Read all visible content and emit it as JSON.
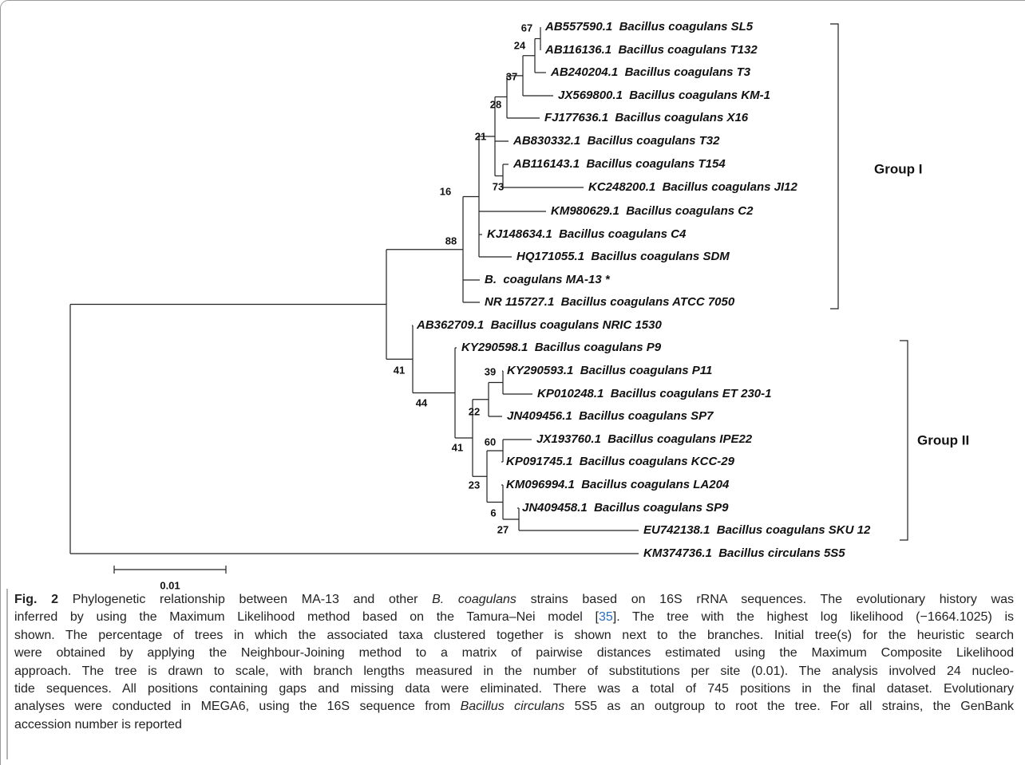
{
  "tree": {
    "leaves": [
      "AB557590.1  Bacillus coagulans SL5",
      "AB116136.1  Bacillus coagulans T132",
      "AB240204.1  Bacillus coagulans T3",
      "JX569800.1  Bacillus coagulans KM-1",
      "FJ177636.1  Bacillus coagulans X16",
      "AB830332.1  Bacillus coagulans T32",
      "AB116143.1  Bacillus coagulans T154",
      "KC248200.1  Bacillus coagulans JI12",
      "KM980629.1  Bacillus coagulans C2",
      "KJ148634.1  Bacillus coagulans C4",
      "HQ171055.1  Bacillus coagulans SDM",
      "B.  coagulans MA-13 *",
      "NR 115727.1  Bacillus coagulans ATCC 7050",
      "AB362709.1  Bacillus coagulans NRIC 1530",
      "KY290598.1  Bacillus coagulans P9",
      "KY290593.1  Bacillus coagulans P11",
      "KP010248.1  Bacillus coagulans ET 230-1",
      "JN409456.1  Bacillus coagulans SP7",
      "JX193760.1  Bacillus coagulans IPE22",
      "KP091745.1  Bacillus coagulans KCC-29",
      "KM096994.1  Bacillus coagulans LA204",
      "JN409458.1  Bacillus coagulans SP9",
      "EU742138.1  Bacillus coagulans SKU 12",
      "KM374736.1  Bacillus circulans 5S5"
    ],
    "support": [
      67,
      24,
      37,
      28,
      21,
      73,
      16,
      88,
      41,
      44,
      39,
      22,
      41,
      60,
      23,
      6,
      27
    ],
    "groups": [
      "Group I",
      "Group II"
    ],
    "scale": "0.01"
  },
  "caption": {
    "lines": [
      [
        "Fig. 2",
        " Phylogenetic relationship between MA-13 and other ",
        "B. coagulans",
        " strains based on 16S rRNA sequences. The evolutionary history was"
      ],
      [
        "inferred by using the Maximum Likelihood method based on the Tamura–Nei model [",
        "35",
        "]. The tree with the highest log likelihood (−1664.1025) is"
      ],
      [
        "shown. The percentage of trees in which the associated taxa clustered together is shown next to the branches. Initial tree(s) for the heuristic search"
      ],
      [
        "were obtained by applying the Neighbour-Joining method to a matrix of pairwise distances estimated using the Maximum Composite Likelihood"
      ],
      [
        "approach. The tree is drawn to scale, with branch lengths measured in the number of substitutions per site (0.01). The analysis involved 24 nucleo-"
      ],
      [
        "tide sequences. All positions containing gaps and missing data were eliminated. There was a total of 745 positions in the final dataset. Evolutionary"
      ],
      [
        "analyses were conducted in MEGA6, using the 16S sequence from ",
        "Bacillus circulans",
        " 5S5 as an outgroup to root the tree. For all strains, the GenBank"
      ],
      [
        "accession number is reported"
      ]
    ]
  }
}
